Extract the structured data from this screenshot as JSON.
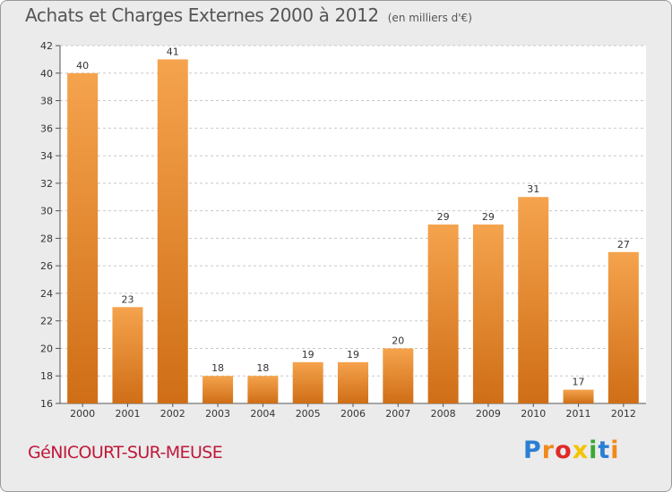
{
  "title": "Achats et Charges Externes 2000 à 2012",
  "subtitle": "(en milliers d'€)",
  "commune": "GéNICOURT-SUR-MEUSE",
  "logo": {
    "text": "Proxiti",
    "letters": [
      {
        "ch": "P",
        "color": "#2a7fd4"
      },
      {
        "ch": "r",
        "color": "#f08a1c"
      },
      {
        "ch": "o",
        "color": "#e02a2a"
      },
      {
        "ch": "x",
        "color": "#f5c400"
      },
      {
        "ch": "i",
        "color": "#3aa832"
      },
      {
        "ch": "t",
        "color": "#2a7fd4"
      },
      {
        "ch": "i",
        "color": "#f08a1c"
      }
    ]
  },
  "colors": {
    "bar_light": "#f5a34d",
    "bar_dark": "#cf6e16",
    "plot_bg": "#ffffff",
    "grid": "#c8c8c8"
  },
  "chart_data": {
    "type": "bar",
    "categories": [
      "2000",
      "2001",
      "2002",
      "2003",
      "2004",
      "2005",
      "2006",
      "2007",
      "2008",
      "2009",
      "2010",
      "2011",
      "2012"
    ],
    "values": [
      40,
      23,
      41,
      18,
      18,
      19,
      19,
      20,
      29,
      29,
      31,
      17,
      27
    ],
    "ylim": [
      16,
      42
    ],
    "yticks": [
      16,
      18,
      20,
      22,
      24,
      26,
      28,
      30,
      32,
      34,
      36,
      38,
      40,
      42
    ],
    "grid": true,
    "title": "Achats et Charges Externes 2000 à 2012",
    "ylabel": "",
    "xlabel": ""
  }
}
